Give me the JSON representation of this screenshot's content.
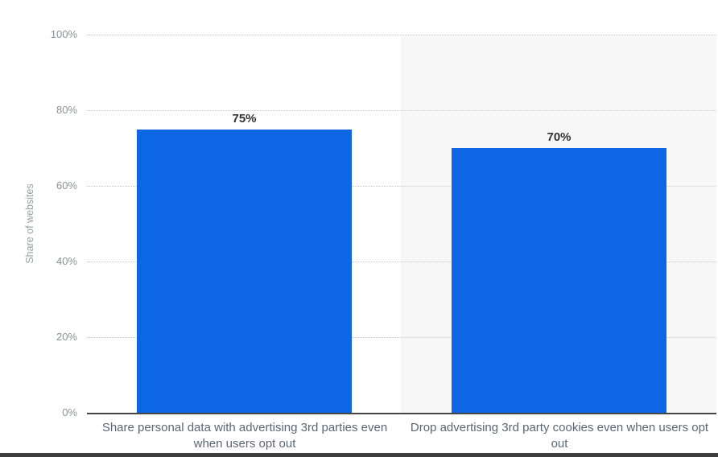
{
  "chart_data": {
    "type": "bar",
    "title": "",
    "ylabel": "Share of websites",
    "xlabel": "",
    "categories": [
      "Share personal data with advertising 3rd parties even when users opt out",
      "Drop advertising 3rd party cookies even when users opt out"
    ],
    "values": [
      75,
      70
    ],
    "value_labels": [
      "75%",
      "70%"
    ],
    "ylim": [
      0,
      100
    ],
    "ytick_step": 20,
    "yticks": [
      "100%",
      "80%",
      "60%",
      "40%",
      "20%",
      "0%"
    ],
    "grid": "horizontal-dotted",
    "legend": "none",
    "bar_color": "#0d66e4",
    "highlighted_category_index": 1,
    "highlight_color": "#f7f7f8"
  }
}
